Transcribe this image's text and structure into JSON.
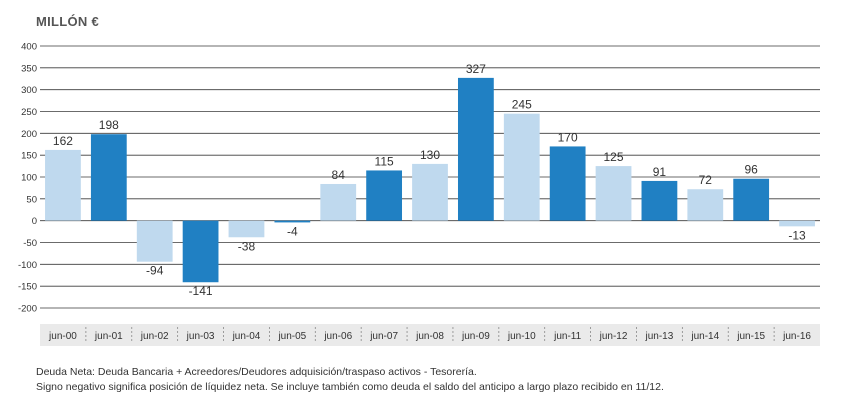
{
  "chart_data": {
    "type": "bar",
    "title": "MILLÓN €",
    "categories": [
      "jun-00",
      "jun-01",
      "jun-02",
      "jun-03",
      "jun-04",
      "jun-05",
      "jun-06",
      "jun-07",
      "jun-08",
      "jun-09",
      "jun-10",
      "jun-11",
      "jun-12",
      "jun-13",
      "jun-14",
      "jun-15",
      "jun-16"
    ],
    "values": [
      162,
      198,
      -94,
      -141,
      -38,
      -4,
      84,
      115,
      130,
      327,
      245,
      170,
      125,
      91,
      72,
      96,
      -13
    ],
    "value_labels": [
      "162",
      "198",
      "-94",
      "-141",
      "-38",
      "-4",
      "84",
      "115",
      "130",
      "327",
      "245",
      "170",
      "125",
      "91",
      "72",
      "96",
      "-13"
    ],
    "ylim": [
      -200,
      400
    ],
    "yticks": [
      400,
      350,
      300,
      250,
      200,
      150,
      100,
      50,
      0,
      -50,
      -100,
      -150,
      -200
    ],
    "ytick_labels": [
      "400",
      "350",
      "300",
      "250",
      "200",
      "150",
      "100",
      "50",
      "0",
      "-50",
      "-100",
      "-150",
      "-200"
    ],
    "grid": true,
    "colors": {
      "light": "#bfd9ee",
      "dark": "#2080c3",
      "grid": "#3a3a3a",
      "axis_band": "#eaeaea",
      "text": "#333333"
    },
    "bar_colors": [
      "light",
      "dark",
      "light",
      "dark",
      "light",
      "dark",
      "light",
      "dark",
      "light",
      "dark",
      "light",
      "dark",
      "light",
      "dark",
      "light",
      "dark",
      "light"
    ]
  },
  "notes": [
    "Deuda Neta: Deuda Bancaria + Acreedores/Deudores adquisición/traspaso activos - Tesorería.",
    "Signo negativo significa posición de líquidez neta. Se incluye también como deuda el saldo del anticipo a largo plazo recibido en 11/12."
  ]
}
